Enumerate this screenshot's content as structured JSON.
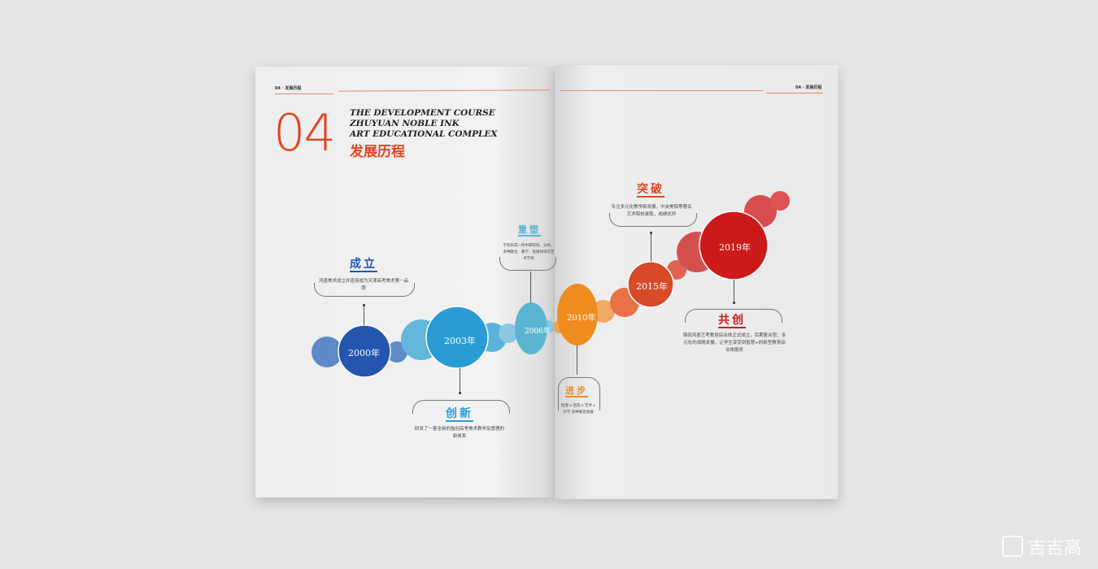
{
  "header": {
    "left": "04 · 发展历程",
    "right": "04 · 发展历程"
  },
  "title": {
    "number": "04",
    "en_lines": [
      "THE DEVELOPMENT COURSE",
      "ZHUYUAN NOBLE INK",
      "ART EDUCATIONAL COMPLEX"
    ],
    "cn": "发展历程"
  },
  "timeline": [
    {
      "year": "2000年",
      "label": "成立",
      "desc": "鸿墨美术成立并逐渐成为天津高考美术第一品牌",
      "color": "#2456b0"
    },
    {
      "year": "2003年",
      "label": "创新",
      "desc": "研发了一套全新的独创高考美术教学及管理的新体系",
      "color": "#2a9bd4"
    },
    {
      "year": "2006年",
      "label": "重塑",
      "desc": "学校形成一所中职院校、分校、多种融合、教学、优质师资的艺术学校",
      "color": "#5ab5d0"
    },
    {
      "year": "2010年",
      "label": "进步",
      "desc": "恒瑞 x 名院 x 艺术 x 升学 多种联合发展",
      "color": "#ee8c20"
    },
    {
      "year": "2015年",
      "label": "突破",
      "desc": "专注多元化教学新发展，中央美院等著名艺术院校录取，成绩优异",
      "color": "#d84a28"
    },
    {
      "year": "2019年",
      "label": "共创",
      "desc": "铸就鸿墨艺考教育综合体正式成立，后期复合型、多元化的战略发展，让学生享受到智慧+的新型教育综合体服务",
      "color": "#cc1a1a"
    }
  ],
  "watermark": "吉吉高"
}
